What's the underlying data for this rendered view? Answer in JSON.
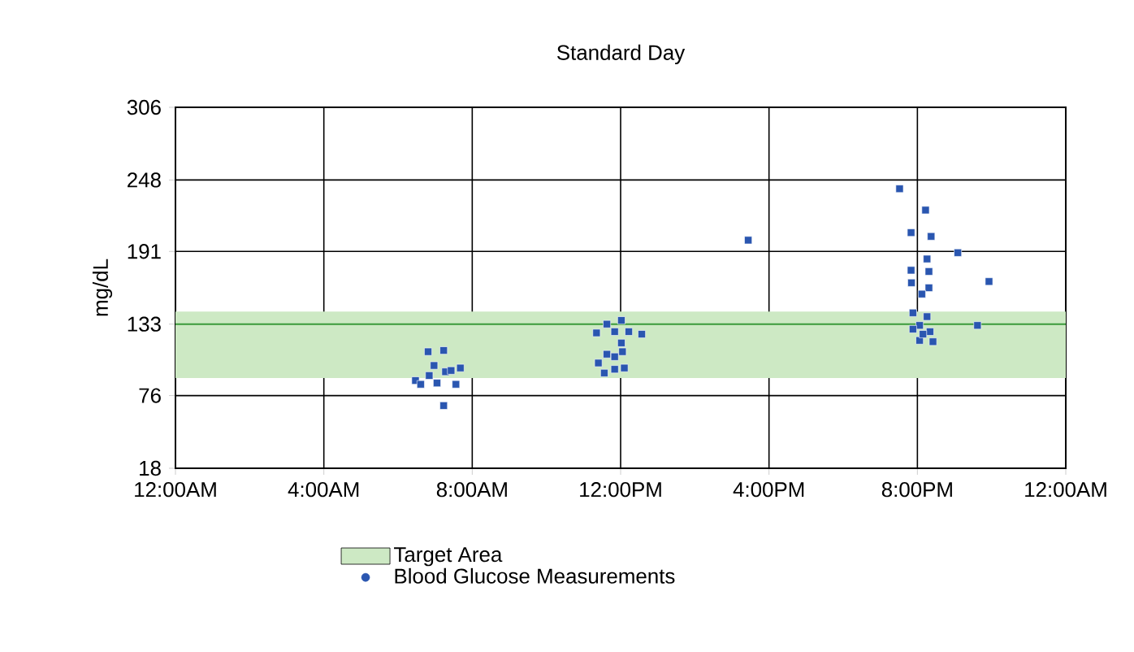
{
  "chart_data": {
    "type": "scatter",
    "title": "Standard Day",
    "ylabel": "mg/dL",
    "xlim": [
      0,
      24
    ],
    "ylim": [
      18,
      306
    ],
    "xticks": [
      {
        "value": 0,
        "label": "12:00AM"
      },
      {
        "value": 4,
        "label": "4:00AM"
      },
      {
        "value": 8,
        "label": "8:00AM"
      },
      {
        "value": 12,
        "label": "12:00PM"
      },
      {
        "value": 16,
        "label": "4:00PM"
      },
      {
        "value": 20,
        "label": "8:00PM"
      },
      {
        "value": 24,
        "label": "12:00AM"
      }
    ],
    "yticks": [
      18,
      76,
      133,
      191,
      248,
      306
    ],
    "grid": true,
    "legend": "bottom",
    "marker": "square",
    "bands": [
      {
        "axis": "y",
        "from": 90,
        "to": 143,
        "label": "Target Area",
        "color": "#cde9c4"
      }
    ],
    "ref_lines": [
      {
        "axis": "y",
        "value": 133,
        "color": "#3a9a3a"
      }
    ],
    "series": [
      {
        "name": "Blood Glucose Measurements",
        "color": "#2a56b0",
        "x": [
          6.81,
          7.23,
          6.97,
          7.28,
          7.68,
          6.47,
          6.61,
          7.05,
          7.56,
          6.84,
          7.23,
          7.43,
          12.02,
          11.63,
          11.35,
          11.84,
          12.22,
          12.57,
          12.02,
          11.63,
          11.4,
          11.84,
          12.1,
          11.56,
          11.84,
          12.05,
          15.44,
          19.52,
          20.22,
          19.83,
          20.37,
          21.09,
          20.26,
          19.83,
          20.31,
          19.84,
          20.31,
          20.12,
          21.93,
          19.88,
          20.26,
          20.06,
          19.88,
          20.34,
          21.62,
          20.06,
          20.42,
          20.15
        ],
        "values": [
          111,
          112,
          100,
          95,
          98,
          88,
          85,
          86,
          85,
          92,
          68,
          96,
          136,
          133,
          126,
          127,
          127,
          125,
          118,
          109,
          102,
          107,
          98,
          94,
          97,
          111,
          200,
          241,
          224,
          206,
          203,
          190,
          185,
          176,
          175,
          166,
          162,
          157,
          167,
          142,
          139,
          132,
          129,
          127,
          132,
          120,
          119,
          125
        ]
      }
    ]
  }
}
